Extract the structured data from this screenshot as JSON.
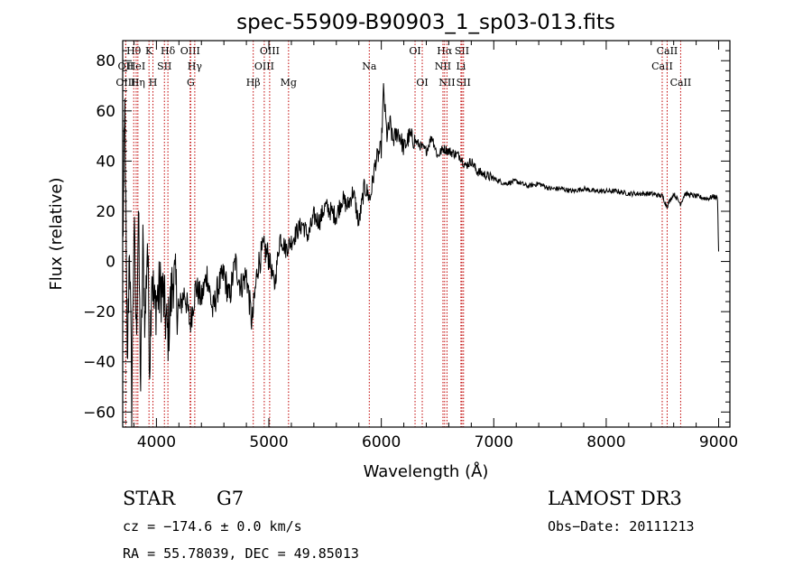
{
  "chart_data": {
    "type": "line",
    "title": "spec-55909-B90903_1_sp03-013.fits",
    "xlabel": "Wavelength (Å)",
    "ylabel": "Flux (relative)",
    "xlim": [
      3700,
      9100
    ],
    "ylim": [
      -66,
      88
    ],
    "xticks": [
      4000,
      5000,
      6000,
      7000,
      8000,
      9000
    ],
    "yticks": [
      -60,
      -40,
      -20,
      0,
      20,
      40,
      60,
      80
    ],
    "series": [
      {
        "name": "spectrum",
        "x": [
          3700,
          3720,
          3740,
          3760,
          3780,
          3800,
          3820,
          3840,
          3860,
          3880,
          3900,
          3920,
          3940,
          3960,
          3980,
          4000,
          4050,
          4100,
          4150,
          4200,
          4250,
          4300,
          4350,
          4400,
          4450,
          4500,
          4550,
          4600,
          4650,
          4700,
          4750,
          4800,
          4850,
          4900,
          4950,
          5000,
          5050,
          5100,
          5150,
          5200,
          5250,
          5300,
          5350,
          5400,
          5450,
          5500,
          5550,
          5600,
          5650,
          5700,
          5750,
          5800,
          5850,
          5900,
          5950,
          6000,
          6020,
          6050,
          6080,
          6100,
          6150,
          6200,
          6250,
          6300,
          6350,
          6400,
          6450,
          6500,
          6550,
          6600,
          6650,
          6700,
          6750,
          6800,
          6850,
          6900,
          6950,
          7000,
          7100,
          7200,
          7300,
          7400,
          7500,
          7600,
          7700,
          7800,
          7900,
          8000,
          8100,
          8200,
          8300,
          8400,
          8500,
          8540,
          8600,
          8660,
          8700,
          8800,
          8900,
          8960,
          8990,
          9000
        ],
        "y": [
          5,
          60,
          -45,
          10,
          -55,
          15,
          -30,
          20,
          -50,
          5,
          -25,
          10,
          -40,
          0,
          -20,
          -15,
          -10,
          -30,
          -5,
          -20,
          -12,
          -25,
          -10,
          -15,
          -5,
          -20,
          -10,
          -5,
          -15,
          0,
          -10,
          -5,
          -25,
          -2,
          5,
          2,
          -10,
          10,
          5,
          8,
          12,
          15,
          10,
          18,
          16,
          22,
          20,
          18,
          25,
          22,
          28,
          15,
          30,
          25,
          40,
          45,
          68,
          50,
          55,
          48,
          52,
          45,
          50,
          48,
          46,
          44,
          50,
          42,
          45,
          44,
          43,
          42,
          38,
          40,
          36,
          35,
          34,
          33,
          31,
          32,
          30,
          31,
          29,
          29,
          28,
          29,
          28,
          28,
          28,
          27,
          27,
          27,
          26,
          22,
          27,
          23,
          27,
          26,
          25,
          26,
          25,
          4
        ]
      }
    ],
    "lines": [
      {
        "name": "Hθ",
        "wave": 3798,
        "row": 0
      },
      {
        "name": "OII",
        "wave": 3727,
        "row": 1
      },
      {
        "name": "OIII",
        "wave": 3727,
        "row": 2
      },
      {
        "name": "HeI",
        "wave": 3820,
        "row": 1
      },
      {
        "name": "Hη",
        "wave": 3835,
        "row": 2
      },
      {
        "name": "K",
        "wave": 3934,
        "row": 0
      },
      {
        "name": "H",
        "wave": 3969,
        "row": 2
      },
      {
        "name": "SII",
        "wave": 4071,
        "row": 1
      },
      {
        "name": "Hδ",
        "wave": 4102,
        "row": 0
      },
      {
        "name": "OIII",
        "wave": 4300,
        "row": 0
      },
      {
        "name": "Hγ",
        "wave": 4341,
        "row": 1
      },
      {
        "name": "G",
        "wave": 4305,
        "row": 2
      },
      {
        "name": "Hβ",
        "wave": 4861,
        "row": 2
      },
      {
        "name": "OIII",
        "wave": 4959,
        "row": 1
      },
      {
        "name": "OIII",
        "wave": 5007,
        "row": 0
      },
      {
        "name": "Mg",
        "wave": 5175,
        "row": 2
      },
      {
        "name": "Na",
        "wave": 5893,
        "row": 1
      },
      {
        "name": "OI",
        "wave": 6300,
        "row": 0
      },
      {
        "name": "OI",
        "wave": 6364,
        "row": 2
      },
      {
        "name": "Hα",
        "wave": 6563,
        "row": 0
      },
      {
        "name": "NII",
        "wave": 6548,
        "row": 1
      },
      {
        "name": "NII",
        "wave": 6584,
        "row": 2
      },
      {
        "name": "SII",
        "wave": 6717,
        "row": 0
      },
      {
        "name": "SII",
        "wave": 6731,
        "row": 2
      },
      {
        "name": "Li",
        "wave": 6708,
        "row": 1
      },
      {
        "name": "CaII",
        "wave": 8498,
        "row": 1
      },
      {
        "name": "CaII",
        "wave": 8542,
        "row": 0
      },
      {
        "name": "CaII",
        "wave": 8662,
        "row": 2
      }
    ]
  },
  "info": {
    "class": "STAR",
    "subclass": "G7",
    "survey": "LAMOST DR3",
    "redshift": "cz = −174.6 ± 0.0 km/s",
    "obs_date": "Obs−Date: 20111213",
    "coords": "RA =  55.78039, DEC =  49.85013"
  }
}
